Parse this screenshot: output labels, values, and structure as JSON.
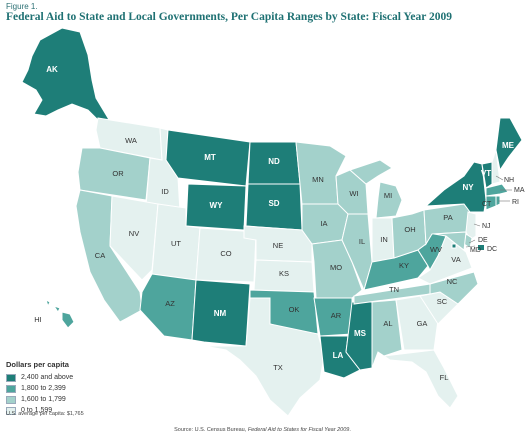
{
  "figure_label": "Figure 1.",
  "title": "Federal Aid to State and Local Governments, Per Capita Ranges by State:  Fiscal Year 2009",
  "legend": {
    "title": "Dollars per capita",
    "items": [
      {
        "label": "2,400 and above",
        "color": "#1e7e78"
      },
      {
        "label": "1,800 to 2,399",
        "color": "#4ea59d"
      },
      {
        "label": "1,600 to 1,799",
        "color": "#a3d1cb"
      },
      {
        "label": "0 to 1,599",
        "color": "#e4f1ef"
      }
    ]
  },
  "us_average": "U.S. average per capita: $1,765",
  "source": {
    "prefix": "Source: U.S. Census Bureau, ",
    "title": "Federal Aid to States for Fiscal Year 2009",
    "suffix": "."
  },
  "states": {
    "AK": {
      "label": "AK",
      "class": 4
    },
    "HI": {
      "label": "HI",
      "class": 3
    },
    "WA": {
      "label": "WA",
      "class": 1
    },
    "OR": {
      "label": "OR",
      "class": 2
    },
    "CA": {
      "label": "CA",
      "class": 2
    },
    "ID": {
      "label": "ID",
      "class": 1
    },
    "NV": {
      "label": "NV",
      "class": 1
    },
    "MT": {
      "label": "MT",
      "class": 4
    },
    "WY": {
      "label": "WY",
      "class": 4
    },
    "UT": {
      "label": "UT",
      "class": 1
    },
    "CO": {
      "label": "CO",
      "class": 1
    },
    "AZ": {
      "label": "AZ",
      "class": 3
    },
    "NM": {
      "label": "NM",
      "class": 4
    },
    "ND": {
      "label": "ND",
      "class": 4
    },
    "SD": {
      "label": "SD",
      "class": 4
    },
    "NE": {
      "label": "NE",
      "class": 1
    },
    "KS": {
      "label": "KS",
      "class": 1
    },
    "OK": {
      "label": "OK",
      "class": 3
    },
    "TX": {
      "label": "TX",
      "class": 1
    },
    "MN": {
      "label": "MN",
      "class": 2
    },
    "IA": {
      "label": "IA",
      "class": 2
    },
    "MO": {
      "label": "MO",
      "class": 2
    },
    "AR": {
      "label": "AR",
      "class": 3
    },
    "LA": {
      "label": "LA",
      "class": 4
    },
    "WI": {
      "label": "WI",
      "class": 2
    },
    "IL": {
      "label": "IL",
      "class": 2
    },
    "MS": {
      "label": "MS",
      "class": 4
    },
    "MI": {
      "label": "MI",
      "class": 2
    },
    "IN": {
      "label": "IN",
      "class": 1
    },
    "KY": {
      "label": "KY",
      "class": 3
    },
    "TN": {
      "label": "TN",
      "class": 2
    },
    "AL": {
      "label": "AL",
      "class": 2
    },
    "OH": {
      "label": "OH",
      "class": 2
    },
    "WV": {
      "label": "WV",
      "class": 3
    },
    "GA": {
      "label": "GA",
      "class": 1
    },
    "FL": {
      "label": "FL",
      "class": 1
    },
    "SC": {
      "label": "SC",
      "class": 1
    },
    "NC": {
      "label": "NC",
      "class": 2
    },
    "VA": {
      "label": "VA",
      "class": 1
    },
    "PA": {
      "label": "PA",
      "class": 2
    },
    "NY": {
      "label": "NY",
      "class": 4
    },
    "VT": {
      "label": "VT",
      "class": 4
    },
    "NH": {
      "label": "NH",
      "class": 1
    },
    "ME": {
      "label": "ME",
      "class": 4
    },
    "MA": {
      "label": "MA",
      "class": 3
    },
    "CT": {
      "label": "CT",
      "class": 3
    },
    "RI": {
      "label": "RI",
      "class": 3
    },
    "NJ": {
      "label": "NJ",
      "class": 1
    },
    "DE": {
      "label": "DE",
      "class": 2
    },
    "MD": {
      "label": "MD",
      "class": 2
    },
    "DC": {
      "label": "DC",
      "class": 4
    }
  }
}
